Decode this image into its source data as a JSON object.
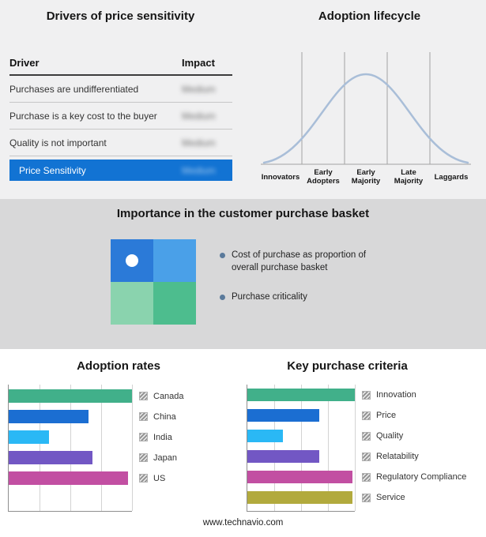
{
  "drivers_panel": {
    "title": "Drivers of price sensitivity",
    "table": {
      "col_driver": "Driver",
      "col_impact": "Impact",
      "rows": [
        {
          "driver": "Purchases are undifferentiated",
          "impact": "Medium"
        },
        {
          "driver": "Purchase is a key cost to the buyer",
          "impact": "Medium"
        },
        {
          "driver": "Quality is not important",
          "impact": "Medium"
        }
      ],
      "highlight_row": {
        "driver": "Price Sensitivity",
        "impact": "Medium"
      },
      "highlight_color": "#1273d3",
      "impact_values_blurred": true
    }
  },
  "basket_panel": {
    "title": "Importance in the customer purchase basket",
    "bullets": [
      "Cost of purchase as proportion of overall purchase basket",
      "Purchase criticality"
    ],
    "matrix_colors": {
      "top_left": "#2b7ad8",
      "top_right": "#4aa0e8",
      "bottom_left": "#8ad3ae",
      "bottom_right": "#4dbd8e"
    },
    "marker": "white-dot-top-left-quadrant",
    "bullet_color": "#5a7a9b"
  },
  "footer": {
    "url": "www.technavio.com"
  },
  "chart_data": [
    {
      "name": "adoption_rates",
      "type": "bar",
      "orientation": "horizontal",
      "title": "Adoption rates",
      "categories": [
        "Canada",
        "China",
        "India",
        "Japan",
        "US"
      ],
      "values": [
        100,
        65,
        33,
        68,
        97
      ],
      "colors": [
        "#41b08a",
        "#1b6ed2",
        "#2ab8f5",
        "#7257c4",
        "#c24fa2"
      ],
      "xlim": [
        0,
        100
      ],
      "grid": true,
      "tick_labels": "none",
      "legend_position": "right",
      "legend_swatch_style": "gray-hatched"
    },
    {
      "name": "key_purchase_criteria",
      "type": "bar",
      "orientation": "horizontal",
      "title": "Key purchase criteria",
      "categories": [
        "Innovation",
        "Price",
        "Quality",
        "Relatability",
        "Regulatory Compliance",
        "Service"
      ],
      "values": [
        100,
        67,
        33,
        67,
        98,
        98
      ],
      "colors": [
        "#41b08a",
        "#1b6ed2",
        "#2ab8f5",
        "#7257c4",
        "#c24fa2",
        "#b2aa3d"
      ],
      "xlim": [
        0,
        100
      ],
      "grid": true,
      "tick_labels": "none",
      "legend_position": "right",
      "legend_swatch_style": "gray-hatched"
    },
    {
      "name": "adoption_lifecycle",
      "type": "area",
      "curve": "bell",
      "title": "Adoption lifecycle",
      "categories": [
        "Innovators",
        "Early Adopters",
        "Early Majority",
        "Late Majority",
        "Laggards"
      ],
      "curve_color": "#a9bed8",
      "divider_lines": 4
    }
  ]
}
